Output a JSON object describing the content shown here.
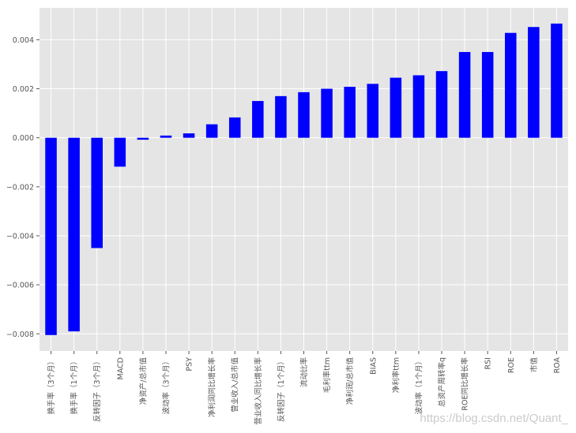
{
  "chart_data": {
    "type": "bar",
    "title": "",
    "xlabel": "",
    "ylabel": "",
    "categories": [
      "换手率（3个月）",
      "换手率（1个月）",
      "反转因子（3个月）",
      "MACD",
      "净资产/总市值",
      "波动率（3个月）",
      "PSY",
      "净利润同比增长率",
      "营业收入/总市值",
      "营业收入同比增长率",
      "反转因子（1个月）",
      "流动比率",
      "毛利率ttm",
      "净利润/总市值",
      "BIAS",
      "净利率ttm",
      "波动率（1个月）",
      "总资产周转率q",
      "ROE同比增长率",
      "RSI",
      "ROE",
      "市值",
      "ROA"
    ],
    "values": [
      -0.00805,
      -0.0079,
      -0.0045,
      -0.00118,
      -8e-05,
      9e-05,
      0.00018,
      0.00055,
      0.00083,
      0.0015,
      0.0017,
      0.00186,
      0.002,
      0.00208,
      0.0022,
      0.00245,
      0.00255,
      0.00272,
      0.0035,
      0.0035,
      0.00428,
      0.00452,
      0.00466
    ],
    "yticks": [
      "0.004",
      "0.002",
      "0.000",
      "−0.002",
      "−0.004",
      "−0.006",
      "−0.008"
    ],
    "ytick_values": [
      0.004,
      0.002,
      0.0,
      -0.002,
      -0.004,
      -0.006,
      -0.008
    ],
    "ylim": [
      -0.0087,
      0.0053
    ],
    "grid": true,
    "bar_color": "#0000ff",
    "background_color": "#e5e5e5",
    "grid_color": "#ffffff"
  },
  "watermark": "https://blog.csdn.net/Quant_"
}
